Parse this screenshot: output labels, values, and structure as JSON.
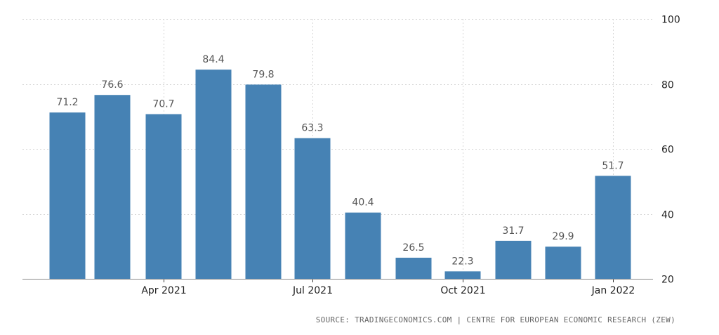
{
  "chart_data": {
    "type": "bar",
    "categories": [
      "2021-02",
      "2021-03",
      "2021-04",
      "2021-05",
      "2021-06",
      "2021-07",
      "2021-08",
      "2021-09",
      "2021-10",
      "2021-11",
      "2021-12",
      "2022-01"
    ],
    "values": [
      71.2,
      76.6,
      70.7,
      84.4,
      79.8,
      63.3,
      40.4,
      26.5,
      22.3,
      31.7,
      29.9,
      51.7
    ],
    "value_labels": [
      "71.2",
      "76.6",
      "70.7",
      "84.4",
      "79.8",
      "63.3",
      "40.4",
      "26.5",
      "22.3",
      "31.7",
      "29.9",
      "51.7"
    ],
    "x_ticks": [
      {
        "category": "2021-04",
        "label": "Apr 2021"
      },
      {
        "category": "2021-07",
        "label": "Jul 2021"
      },
      {
        "category": "2021-10",
        "label": "Oct 2021"
      },
      {
        "category": "2022-01",
        "label": "Jan 2022"
      }
    ],
    "y_ticks": [
      20,
      40,
      60,
      80,
      100
    ],
    "ylim": [
      20,
      100
    ],
    "y_axis_side": "right",
    "grid": true,
    "bar_color": "#4682b4",
    "title": "",
    "xlabel": "",
    "ylabel": ""
  },
  "source": "SOURCE: TRADINGECONOMICS.COM | CENTRE FOR EUROPEAN ECONOMIC RESEARCH (ZEW)"
}
